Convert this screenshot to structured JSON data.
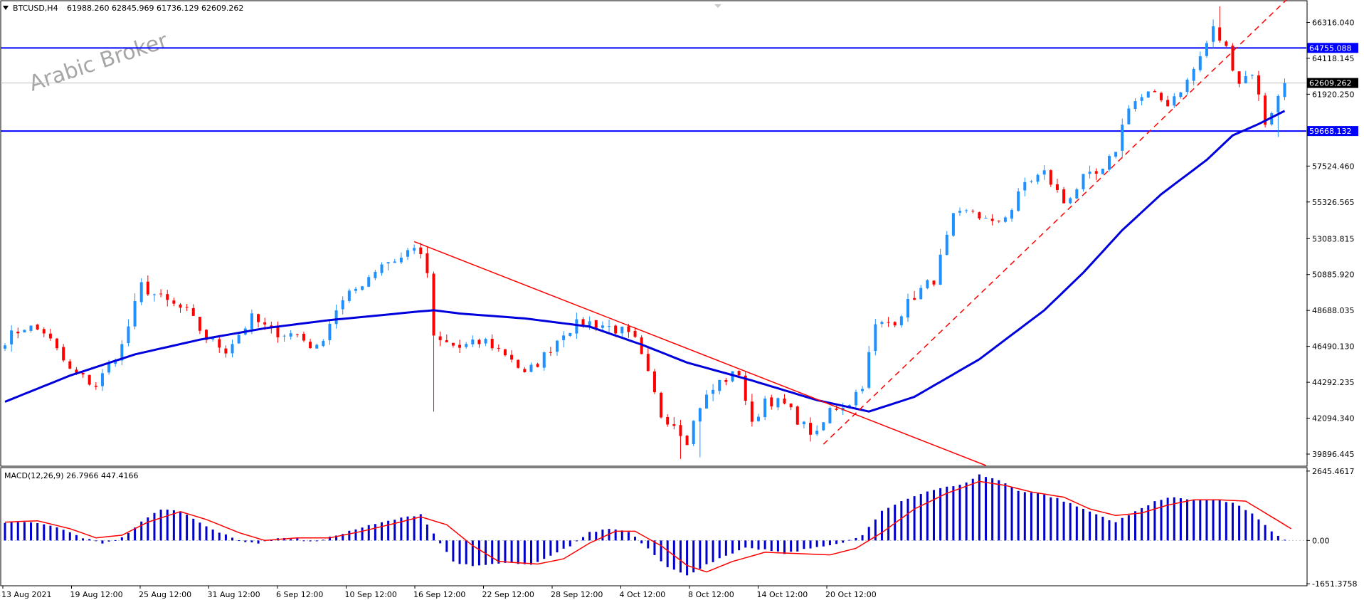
{
  "chart_data": {
    "type": "candlestick",
    "symbol_header": "BTCUSD,H4",
    "ohlc_header": "61988.260 62845.969 61736.129 62609.262",
    "watermark": "Arabic Broker",
    "price_axis": {
      "ylim": [
        39200,
        67600
      ],
      "ticks": [
        "66316.040",
        "64118.145",
        "61920.250",
        "57524.460",
        "55326.565",
        "53083.815",
        "50885.920",
        "48688.035",
        "46490.130",
        "44292.235",
        "42094.340",
        "39896.445"
      ]
    },
    "x_labels": [
      "13 Aug 2021",
      "19 Aug 12:00",
      "25 Aug 12:00",
      "31 Aug 12:00",
      "6 Sep 12:00",
      "10 Sep 12:00",
      "16 Sep 12:00",
      "22 Sep 12:00",
      "28 Sep 12:00",
      "4 Oct 12:00",
      "8 Oct 12:00",
      "14 Oct 12:00",
      "20 Oct 12:00"
    ],
    "horizontal_levels": [
      {
        "price": 64755.088,
        "label": "64755.088",
        "color": "#0000ff"
      },
      {
        "price": 59668.132,
        "label": "59668.132",
        "color": "#0000ff"
      }
    ],
    "current_price": {
      "price": 62609.262,
      "label": "62609.262"
    },
    "trendlines": [
      {
        "style": "solid",
        "color": "#ff0000",
        "from": {
          "bar": 63,
          "price": 52900
        },
        "to": {
          "bar": 151,
          "price": 39200
        }
      },
      {
        "style": "dashed",
        "color": "#ff0000",
        "from": {
          "bar": 126,
          "price": 40500
        },
        "to": {
          "bar": 202,
          "price": 69500
        }
      }
    ],
    "bull_color": "#1e90ff",
    "bear_color": "#ff0000",
    "ma_color": "#0000dd",
    "close_path": [
      [
        0,
        46900
      ],
      [
        3,
        47700
      ],
      [
        6,
        47400
      ],
      [
        10,
        45000
      ],
      [
        14,
        44100
      ],
      [
        18,
        46500
      ],
      [
        21,
        50200
      ],
      [
        24,
        49400
      ],
      [
        28,
        48600
      ],
      [
        31,
        47000
      ],
      [
        34,
        46300
      ],
      [
        38,
        48200
      ],
      [
        41,
        47400
      ],
      [
        45,
        47200
      ],
      [
        48,
        46300
      ],
      [
        51,
        48800
      ],
      [
        55,
        50400
      ],
      [
        58,
        51600
      ],
      [
        61,
        51900
      ],
      [
        63,
        52700
      ],
      [
        65,
        51000
      ],
      [
        66,
        46900
      ],
      [
        70,
        46400
      ],
      [
        74,
        46800
      ],
      [
        78,
        45800
      ],
      [
        80,
        44700
      ],
      [
        83,
        45900
      ],
      [
        86,
        47400
      ],
      [
        89,
        48000
      ],
      [
        92,
        47800
      ],
      [
        95,
        47400
      ],
      [
        97,
        46800
      ],
      [
        99,
        44700
      ],
      [
        101,
        42300
      ],
      [
        103,
        41800
      ],
      [
        105,
        40800
      ],
      [
        107,
        42900
      ],
      [
        110,
        44300
      ],
      [
        113,
        44900
      ],
      [
        115,
        41600
      ],
      [
        117,
        43300
      ],
      [
        120,
        42900
      ],
      [
        123,
        41600
      ],
      [
        125,
        41000
      ],
      [
        127,
        42600
      ],
      [
        130,
        43100
      ],
      [
        132,
        44200
      ],
      [
        134,
        47700
      ],
      [
        137,
        48100
      ],
      [
        140,
        49600
      ],
      [
        143,
        50600
      ],
      [
        146,
        54300
      ],
      [
        149,
        54800
      ],
      [
        152,
        53900
      ],
      [
        155,
        54900
      ],
      [
        157,
        56500
      ],
      [
        160,
        57100
      ],
      [
        163,
        55300
      ],
      [
        166,
        56700
      ],
      [
        169,
        57100
      ],
      [
        171,
        58600
      ],
      [
        173,
        61300
      ],
      [
        176,
        61900
      ],
      [
        179,
        61400
      ],
      [
        182,
        62700
      ],
      [
        184,
        64200
      ],
      [
        186,
        65900
      ],
      [
        188,
        64700
      ],
      [
        190,
        62700
      ],
      [
        192,
        63300
      ],
      [
        194,
        60200
      ],
      [
        196,
        61700
      ],
      [
        197,
        62609
      ]
    ],
    "ma_path": [
      [
        0,
        43100
      ],
      [
        10,
        44700
      ],
      [
        20,
        46000
      ],
      [
        30,
        46900
      ],
      [
        40,
        47600
      ],
      [
        50,
        48100
      ],
      [
        58,
        48400
      ],
      [
        63,
        48600
      ],
      [
        66,
        48700
      ],
      [
        70,
        48500
      ],
      [
        80,
        48200
      ],
      [
        90,
        47700
      ],
      [
        98,
        46600
      ],
      [
        105,
        45500
      ],
      [
        115,
        44400
      ],
      [
        125,
        43200
      ],
      [
        133,
        42500
      ],
      [
        140,
        43400
      ],
      [
        150,
        45700
      ],
      [
        160,
        48700
      ],
      [
        166,
        51000
      ],
      [
        172,
        53600
      ],
      [
        178,
        55800
      ],
      [
        185,
        57900
      ],
      [
        189,
        59400
      ],
      [
        193,
        60100
      ],
      [
        197,
        60900
      ]
    ],
    "macd": {
      "label": "MACD(12,26,9) 26.7966 447.4166",
      "ylim": [
        -1700,
        2750
      ],
      "ticks": [
        "2645.4617",
        "0.00",
        "-1651.3758"
      ],
      "histogram_color": "#0000cd",
      "signal_color": "#ff0000",
      "hist_path": [
        [
          0,
          650
        ],
        [
          4,
          700
        ],
        [
          8,
          500
        ],
        [
          12,
          100
        ],
        [
          15,
          -100
        ],
        [
          18,
          100
        ],
        [
          21,
          700
        ],
        [
          24,
          1200
        ],
        [
          27,
          1100
        ],
        [
          30,
          700
        ],
        [
          33,
          300
        ],
        [
          36,
          0
        ],
        [
          39,
          -100
        ],
        [
          42,
          100
        ],
        [
          45,
          50
        ],
        [
          48,
          -50
        ],
        [
          51,
          200
        ],
        [
          55,
          500
        ],
        [
          60,
          800
        ],
        [
          64,
          1000
        ],
        [
          67,
          -100
        ],
        [
          69,
          -800
        ],
        [
          72,
          -1000
        ],
        [
          75,
          -900
        ],
        [
          78,
          -850
        ],
        [
          81,
          -950
        ],
        [
          84,
          -600
        ],
        [
          87,
          -200
        ],
        [
          90,
          300
        ],
        [
          93,
          450
        ],
        [
          96,
          350
        ],
        [
          99,
          -300
        ],
        [
          102,
          -1000
        ],
        [
          105,
          -1350
        ],
        [
          108,
          -900
        ],
        [
          111,
          -600
        ],
        [
          114,
          -300
        ],
        [
          117,
          -350
        ],
        [
          120,
          -500
        ],
        [
          123,
          -350
        ],
        [
          126,
          -200
        ],
        [
          129,
          -100
        ],
        [
          132,
          200
        ],
        [
          135,
          1100
        ],
        [
          138,
          1500
        ],
        [
          141,
          1800
        ],
        [
          144,
          2000
        ],
        [
          147,
          2100
        ],
        [
          150,
          2500
        ],
        [
          153,
          2300
        ],
        [
          156,
          1900
        ],
        [
          159,
          1800
        ],
        [
          162,
          1600
        ],
        [
          165,
          1300
        ],
        [
          168,
          1000
        ],
        [
          171,
          700
        ],
        [
          174,
          1100
        ],
        [
          177,
          1500
        ],
        [
          180,
          1650
        ],
        [
          183,
          1550
        ],
        [
          186,
          1550
        ],
        [
          189,
          1450
        ],
        [
          192,
          1000
        ],
        [
          195,
          350
        ],
        [
          197,
          27
        ]
      ],
      "signal_path": [
        [
          0,
          700
        ],
        [
          5,
          750
        ],
        [
          10,
          450
        ],
        [
          14,
          100
        ],
        [
          18,
          200
        ],
        [
          22,
          700
        ],
        [
          27,
          1100
        ],
        [
          31,
          800
        ],
        [
          36,
          300
        ],
        [
          40,
          0
        ],
        [
          45,
          100
        ],
        [
          50,
          100
        ],
        [
          55,
          350
        ],
        [
          60,
          650
        ],
        [
          64,
          900
        ],
        [
          68,
          600
        ],
        [
          72,
          -200
        ],
        [
          76,
          -800
        ],
        [
          82,
          -900
        ],
        [
          86,
          -700
        ],
        [
          90,
          -100
        ],
        [
          94,
          350
        ],
        [
          97,
          350
        ],
        [
          101,
          -200
        ],
        [
          105,
          -950
        ],
        [
          108,
          -1200
        ],
        [
          112,
          -800
        ],
        [
          117,
          -450
        ],
        [
          122,
          -500
        ],
        [
          127,
          -550
        ],
        [
          131,
          -300
        ],
        [
          135,
          300
        ],
        [
          140,
          1200
        ],
        [
          145,
          1800
        ],
        [
          150,
          2250
        ],
        [
          154,
          2100
        ],
        [
          158,
          1850
        ],
        [
          163,
          1650
        ],
        [
          167,
          1200
        ],
        [
          171,
          950
        ],
        [
          175,
          1050
        ],
        [
          179,
          1350
        ],
        [
          183,
          1550
        ],
        [
          187,
          1550
        ],
        [
          191,
          1500
        ],
        [
          195,
          900
        ],
        [
          198,
          447
        ]
      ]
    }
  }
}
